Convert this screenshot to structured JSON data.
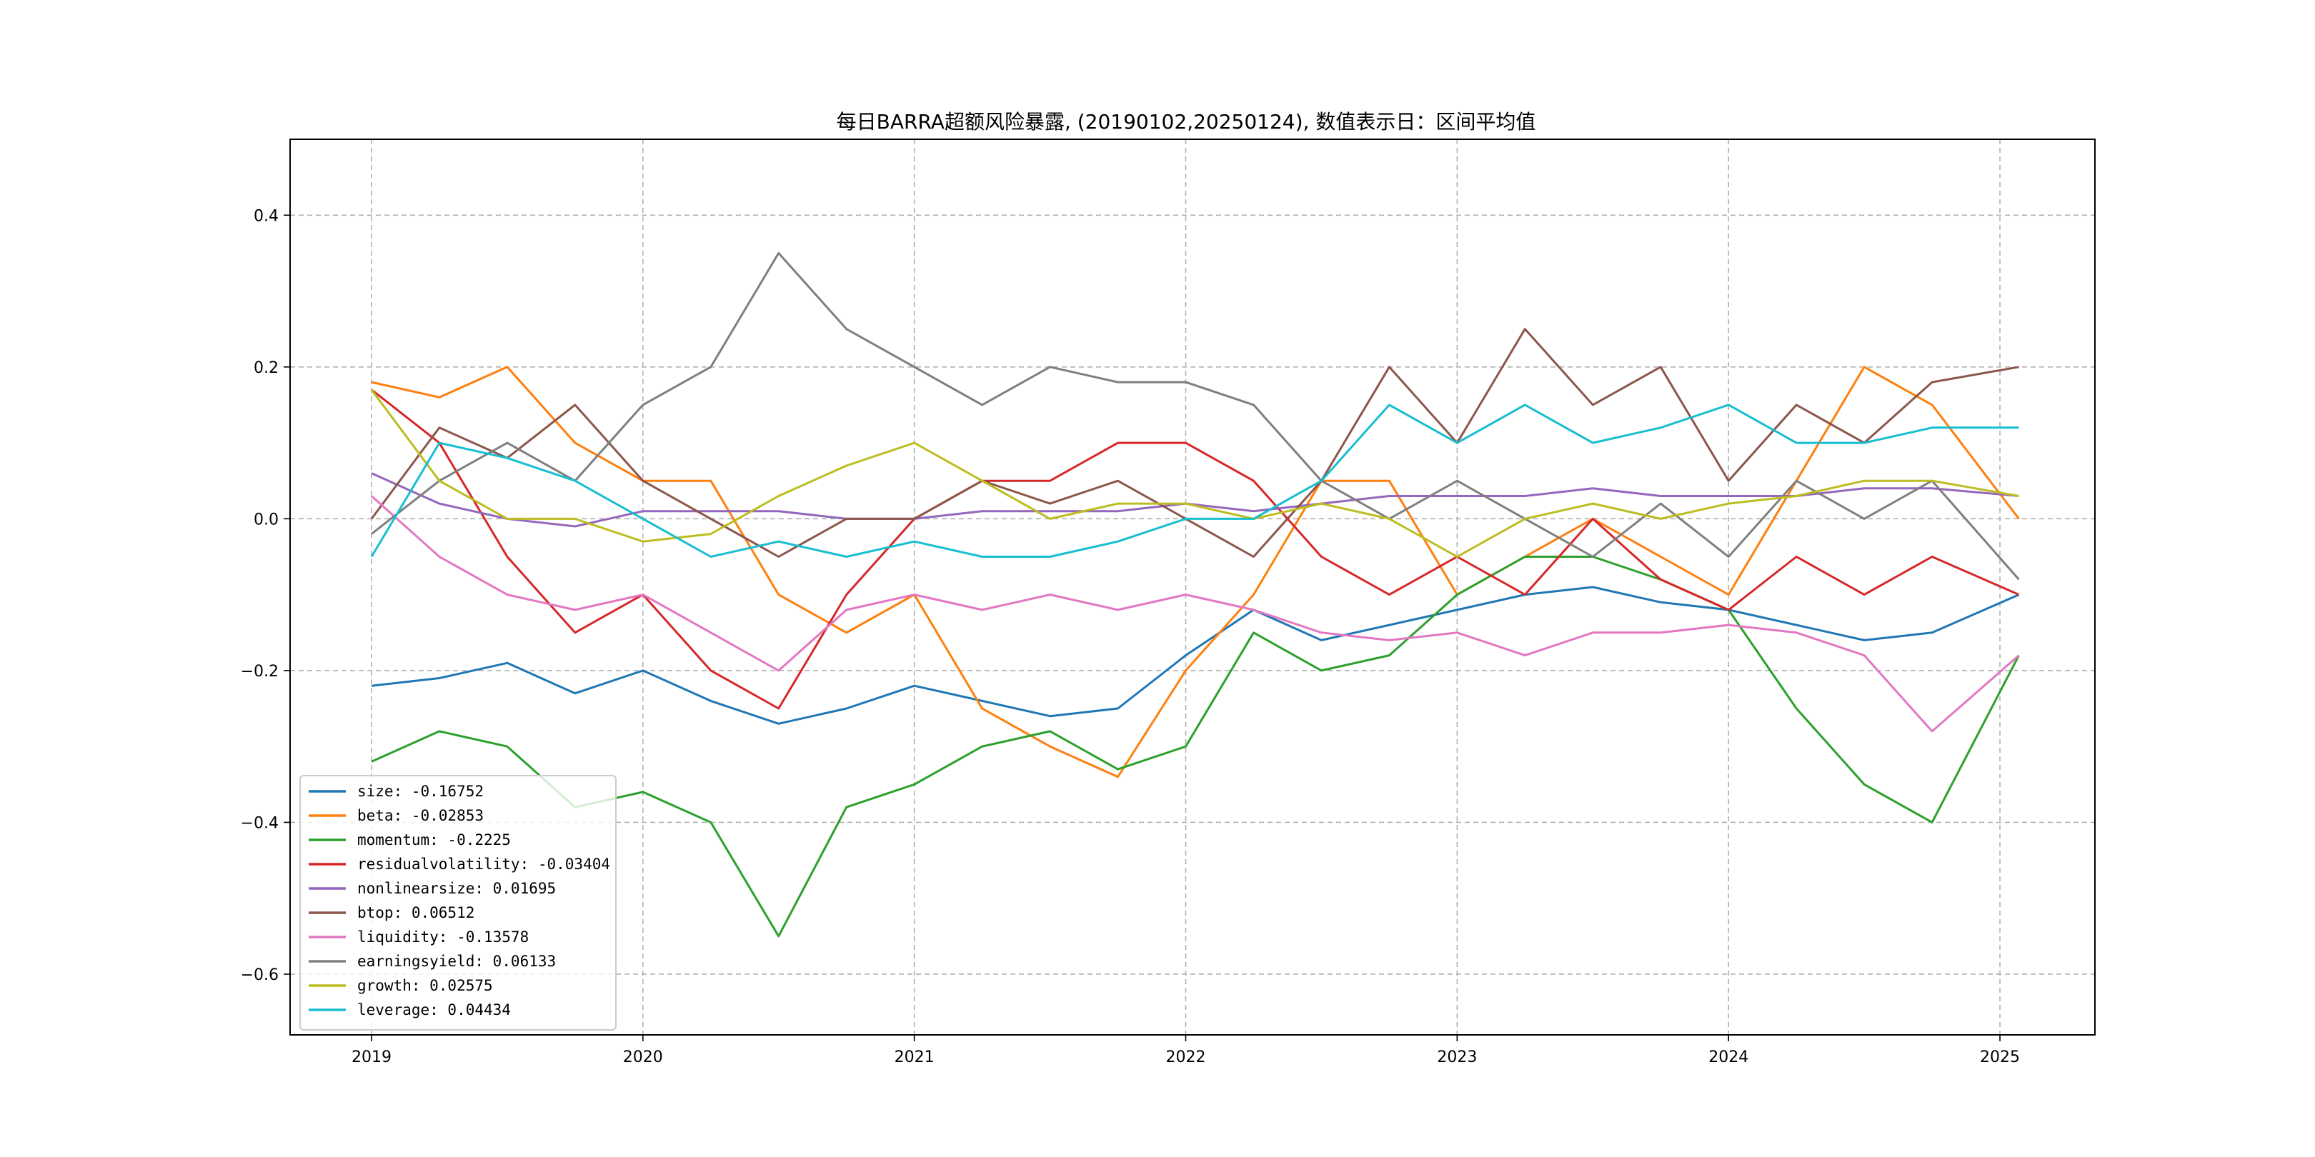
{
  "chart_data": {
    "type": "line",
    "title": "每日BARRA超额风险暴露, (20190102,20250124), 数值表示日：区间平均值",
    "xlabel": "",
    "ylabel": "",
    "x_range": [
      "2019-01-02",
      "2025-01-24"
    ],
    "xlim": [
      2018.7,
      2025.35
    ],
    "ylim": [
      -0.68,
      0.5
    ],
    "x_ticks": [
      {
        "value": 2019,
        "label": "2019"
      },
      {
        "value": 2020,
        "label": "2020"
      },
      {
        "value": 2021,
        "label": "2021"
      },
      {
        "value": 2022,
        "label": "2022"
      },
      {
        "value": 2023,
        "label": "2023"
      },
      {
        "value": 2024,
        "label": "2024"
      },
      {
        "value": 2025,
        "label": "2025"
      }
    ],
    "y_ticks": [
      {
        "value": 0.4,
        "label": "0.4"
      },
      {
        "value": 0.2,
        "label": "0.2"
      },
      {
        "value": 0.0,
        "label": "0.0"
      },
      {
        "value": -0.2,
        "label": "−0.2"
      },
      {
        "value": -0.4,
        "label": "−0.4"
      },
      {
        "value": -0.6,
        "label": "−0.6"
      }
    ],
    "grid": true,
    "legend_position": "bottom-left",
    "series": [
      {
        "name": "size: -0.16752",
        "color": "#1f77b4",
        "x": [
          2019.0,
          2019.25,
          2019.5,
          2019.75,
          2020.0,
          2020.25,
          2020.5,
          2020.75,
          2021.0,
          2021.25,
          2021.5,
          2021.75,
          2022.0,
          2022.25,
          2022.5,
          2022.75,
          2023.0,
          2023.25,
          2023.5,
          2023.75,
          2024.0,
          2024.25,
          2024.5,
          2024.75,
          2025.07
        ],
        "y": [
          -0.22,
          -0.21,
          -0.19,
          -0.23,
          -0.2,
          -0.24,
          -0.27,
          -0.25,
          -0.22,
          -0.24,
          -0.26,
          -0.25,
          -0.18,
          -0.12,
          -0.16,
          -0.14,
          -0.12,
          -0.1,
          -0.09,
          -0.11,
          -0.12,
          -0.14,
          -0.16,
          -0.15,
          -0.1
        ]
      },
      {
        "name": "beta: -0.02853",
        "color": "#ff7f0e",
        "x": [
          2019.0,
          2019.25,
          2019.5,
          2019.75,
          2020.0,
          2020.25,
          2020.5,
          2020.75,
          2021.0,
          2021.25,
          2021.5,
          2021.75,
          2022.0,
          2022.25,
          2022.5,
          2022.75,
          2023.0,
          2023.25,
          2023.5,
          2023.75,
          2024.0,
          2024.25,
          2024.5,
          2024.75,
          2025.07
        ],
        "y": [
          0.18,
          0.16,
          0.2,
          0.1,
          0.05,
          0.05,
          -0.1,
          -0.15,
          -0.1,
          -0.25,
          -0.3,
          -0.34,
          -0.2,
          -0.1,
          0.05,
          0.05,
          -0.1,
          -0.05,
          0.0,
          -0.05,
          -0.1,
          0.05,
          0.2,
          0.15,
          0.0
        ]
      },
      {
        "name": "momentum: -0.2225",
        "color": "#2ca02c",
        "x": [
          2019.0,
          2019.25,
          2019.5,
          2019.75,
          2020.0,
          2020.25,
          2020.5,
          2020.75,
          2021.0,
          2021.25,
          2021.5,
          2021.75,
          2022.0,
          2022.25,
          2022.5,
          2022.75,
          2023.0,
          2023.25,
          2023.5,
          2023.75,
          2024.0,
          2024.25,
          2024.5,
          2024.75,
          2025.07
        ],
        "y": [
          -0.32,
          -0.28,
          -0.3,
          -0.38,
          -0.36,
          -0.4,
          -0.55,
          -0.38,
          -0.35,
          -0.3,
          -0.28,
          -0.33,
          -0.3,
          -0.15,
          -0.2,
          -0.18,
          -0.1,
          -0.05,
          -0.05,
          -0.08,
          -0.12,
          -0.25,
          -0.35,
          -0.4,
          -0.18
        ]
      },
      {
        "name": "residualvolatility: -0.03404",
        "color": "#d62728",
        "x": [
          2019.0,
          2019.25,
          2019.5,
          2019.75,
          2020.0,
          2020.25,
          2020.5,
          2020.75,
          2021.0,
          2021.25,
          2021.5,
          2021.75,
          2022.0,
          2022.25,
          2022.5,
          2022.75,
          2023.0,
          2023.25,
          2023.5,
          2023.75,
          2024.0,
          2024.25,
          2024.5,
          2024.75,
          2025.07
        ],
        "y": [
          0.17,
          0.1,
          -0.05,
          -0.15,
          -0.1,
          -0.2,
          -0.25,
          -0.1,
          0.0,
          0.05,
          0.05,
          0.1,
          0.1,
          0.05,
          -0.05,
          -0.1,
          -0.05,
          -0.1,
          0.0,
          -0.08,
          -0.12,
          -0.05,
          -0.1,
          -0.05,
          -0.1
        ]
      },
      {
        "name": "nonlinearsize: 0.01695",
        "color": "#9467bd",
        "x": [
          2019.0,
          2019.25,
          2019.5,
          2019.75,
          2020.0,
          2020.25,
          2020.5,
          2020.75,
          2021.0,
          2021.25,
          2021.5,
          2021.75,
          2022.0,
          2022.25,
          2022.5,
          2022.75,
          2023.0,
          2023.25,
          2023.5,
          2023.75,
          2024.0,
          2024.25,
          2024.5,
          2024.75,
          2025.07
        ],
        "y": [
          0.06,
          0.02,
          0.0,
          -0.01,
          0.01,
          0.01,
          0.01,
          0.0,
          0.0,
          0.01,
          0.01,
          0.01,
          0.02,
          0.01,
          0.02,
          0.03,
          0.03,
          0.03,
          0.04,
          0.03,
          0.03,
          0.03,
          0.04,
          0.04,
          0.03
        ]
      },
      {
        "name": "btop: 0.06512",
        "color": "#8c564b",
        "x": [
          2019.0,
          2019.25,
          2019.5,
          2019.75,
          2020.0,
          2020.25,
          2020.5,
          2020.75,
          2021.0,
          2021.25,
          2021.5,
          2021.75,
          2022.0,
          2022.25,
          2022.5,
          2022.75,
          2023.0,
          2023.25,
          2023.5,
          2023.75,
          2024.0,
          2024.25,
          2024.5,
          2024.75,
          2025.07
        ],
        "y": [
          0.0,
          0.12,
          0.08,
          0.15,
          0.05,
          0.0,
          -0.05,
          0.0,
          0.0,
          0.05,
          0.02,
          0.05,
          0.0,
          -0.05,
          0.05,
          0.2,
          0.1,
          0.25,
          0.15,
          0.2,
          0.05,
          0.15,
          0.1,
          0.18,
          0.2
        ]
      },
      {
        "name": "liquidity: -0.13578",
        "color": "#e377c2",
        "x": [
          2019.0,
          2019.25,
          2019.5,
          2019.75,
          2020.0,
          2020.25,
          2020.5,
          2020.75,
          2021.0,
          2021.25,
          2021.5,
          2021.75,
          2022.0,
          2022.25,
          2022.5,
          2022.75,
          2023.0,
          2023.25,
          2023.5,
          2023.75,
          2024.0,
          2024.25,
          2024.5,
          2024.75,
          2025.07
        ],
        "y": [
          0.03,
          -0.05,
          -0.1,
          -0.12,
          -0.1,
          -0.15,
          -0.2,
          -0.12,
          -0.1,
          -0.12,
          -0.1,
          -0.12,
          -0.1,
          -0.12,
          -0.15,
          -0.16,
          -0.15,
          -0.18,
          -0.15,
          -0.15,
          -0.14,
          -0.15,
          -0.18,
          -0.28,
          -0.18
        ]
      },
      {
        "name": "earningsyield: 0.06133",
        "color": "#7f7f7f",
        "x": [
          2019.0,
          2019.25,
          2019.5,
          2019.75,
          2020.0,
          2020.25,
          2020.5,
          2020.75,
          2021.0,
          2021.25,
          2021.5,
          2021.75,
          2022.0,
          2022.25,
          2022.5,
          2022.75,
          2023.0,
          2023.25,
          2023.5,
          2023.75,
          2024.0,
          2024.25,
          2024.5,
          2024.75,
          2025.07
        ],
        "y": [
          -0.02,
          0.05,
          0.1,
          0.05,
          0.15,
          0.2,
          0.35,
          0.25,
          0.2,
          0.15,
          0.2,
          0.18,
          0.18,
          0.15,
          0.05,
          0.0,
          0.05,
          0.0,
          -0.05,
          0.02,
          -0.05,
          0.05,
          0.0,
          0.05,
          -0.08
        ]
      },
      {
        "name": "growth: 0.02575",
        "color": "#bcbd22",
        "x": [
          2019.0,
          2019.25,
          2019.5,
          2019.75,
          2020.0,
          2020.25,
          2020.5,
          2020.75,
          2021.0,
          2021.25,
          2021.5,
          2021.75,
          2022.0,
          2022.25,
          2022.5,
          2022.75,
          2023.0,
          2023.25,
          2023.5,
          2023.75,
          2024.0,
          2024.25,
          2024.5,
          2024.75,
          2025.07
        ],
        "y": [
          0.17,
          0.05,
          0.0,
          0.0,
          -0.03,
          -0.02,
          0.03,
          0.07,
          0.1,
          0.05,
          0.0,
          0.02,
          0.02,
          0.0,
          0.02,
          0.0,
          -0.05,
          0.0,
          0.02,
          0.0,
          0.02,
          0.03,
          0.05,
          0.05,
          0.03
        ]
      },
      {
        "name": "leverage: 0.04434",
        "color": "#17becf",
        "x": [
          2019.0,
          2019.25,
          2019.5,
          2019.75,
          2020.0,
          2020.25,
          2020.5,
          2020.75,
          2021.0,
          2021.25,
          2021.5,
          2021.75,
          2022.0,
          2022.25,
          2022.5,
          2022.75,
          2023.0,
          2023.25,
          2023.5,
          2023.75,
          2024.0,
          2024.25,
          2024.5,
          2024.75,
          2025.07
        ],
        "y": [
          -0.05,
          0.1,
          0.08,
          0.05,
          0.0,
          -0.05,
          -0.03,
          -0.05,
          -0.03,
          -0.05,
          -0.05,
          -0.03,
          0.0,
          0.0,
          0.05,
          0.15,
          0.1,
          0.15,
          0.1,
          0.12,
          0.15,
          0.1,
          0.1,
          0.12,
          0.12
        ]
      }
    ]
  }
}
